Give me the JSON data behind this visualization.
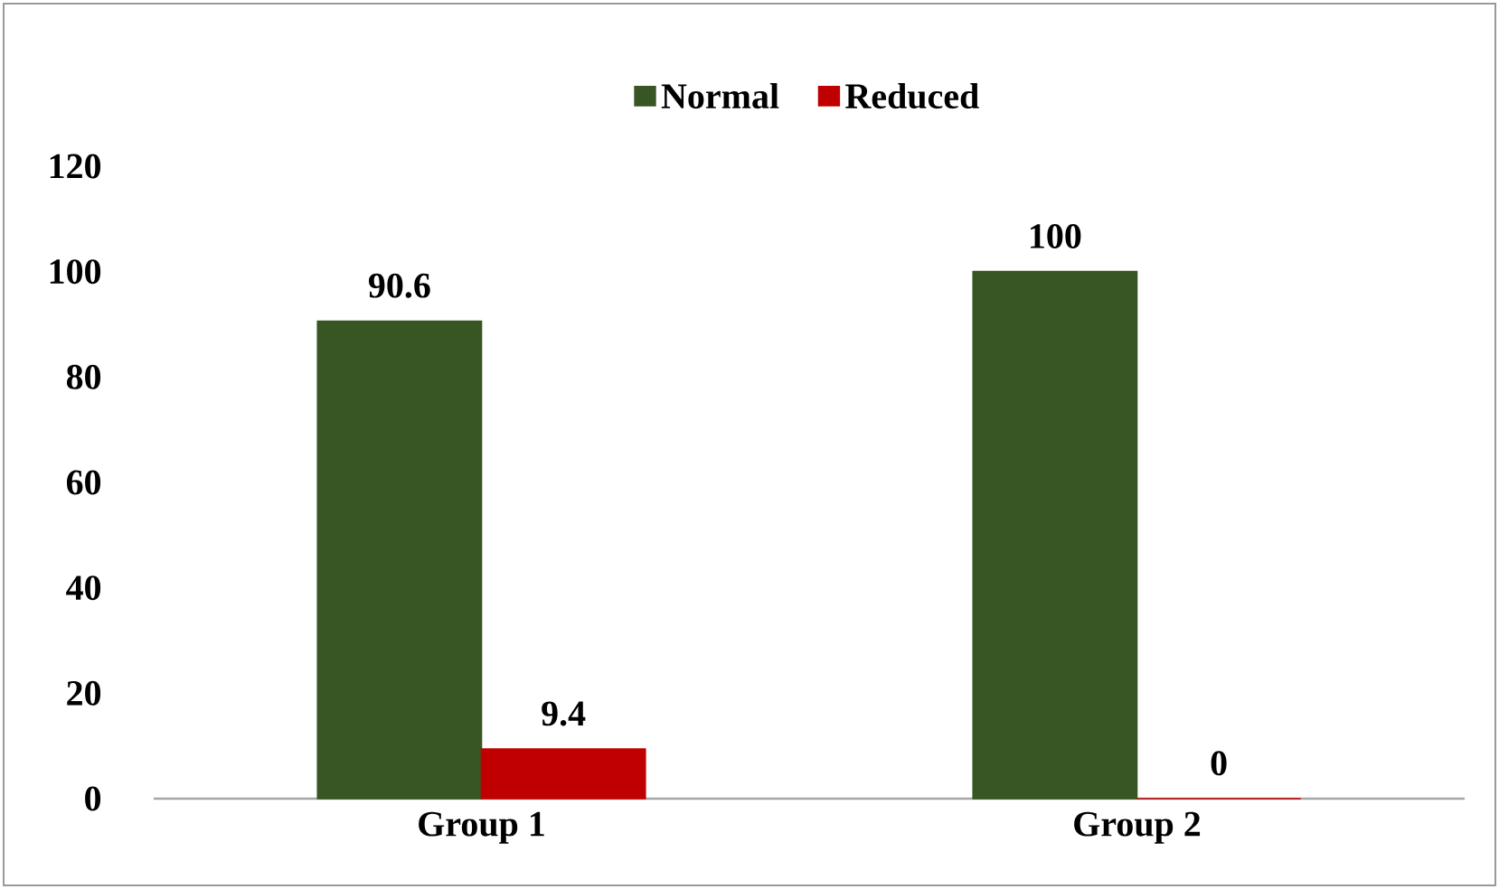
{
  "chart_data": {
    "type": "bar",
    "categories": [
      "Group 1",
      "Group 2"
    ],
    "series": [
      {
        "name": "Normal",
        "color": "#375623",
        "values": [
          90.6,
          100
        ]
      },
      {
        "name": "Reduced",
        "color": "#c00000",
        "values": [
          9.4,
          0
        ]
      }
    ],
    "ylim": [
      0,
      120
    ],
    "yticks": [
      0,
      20,
      40,
      60,
      80,
      100,
      120
    ],
    "data_labels": true,
    "legend": "top"
  }
}
